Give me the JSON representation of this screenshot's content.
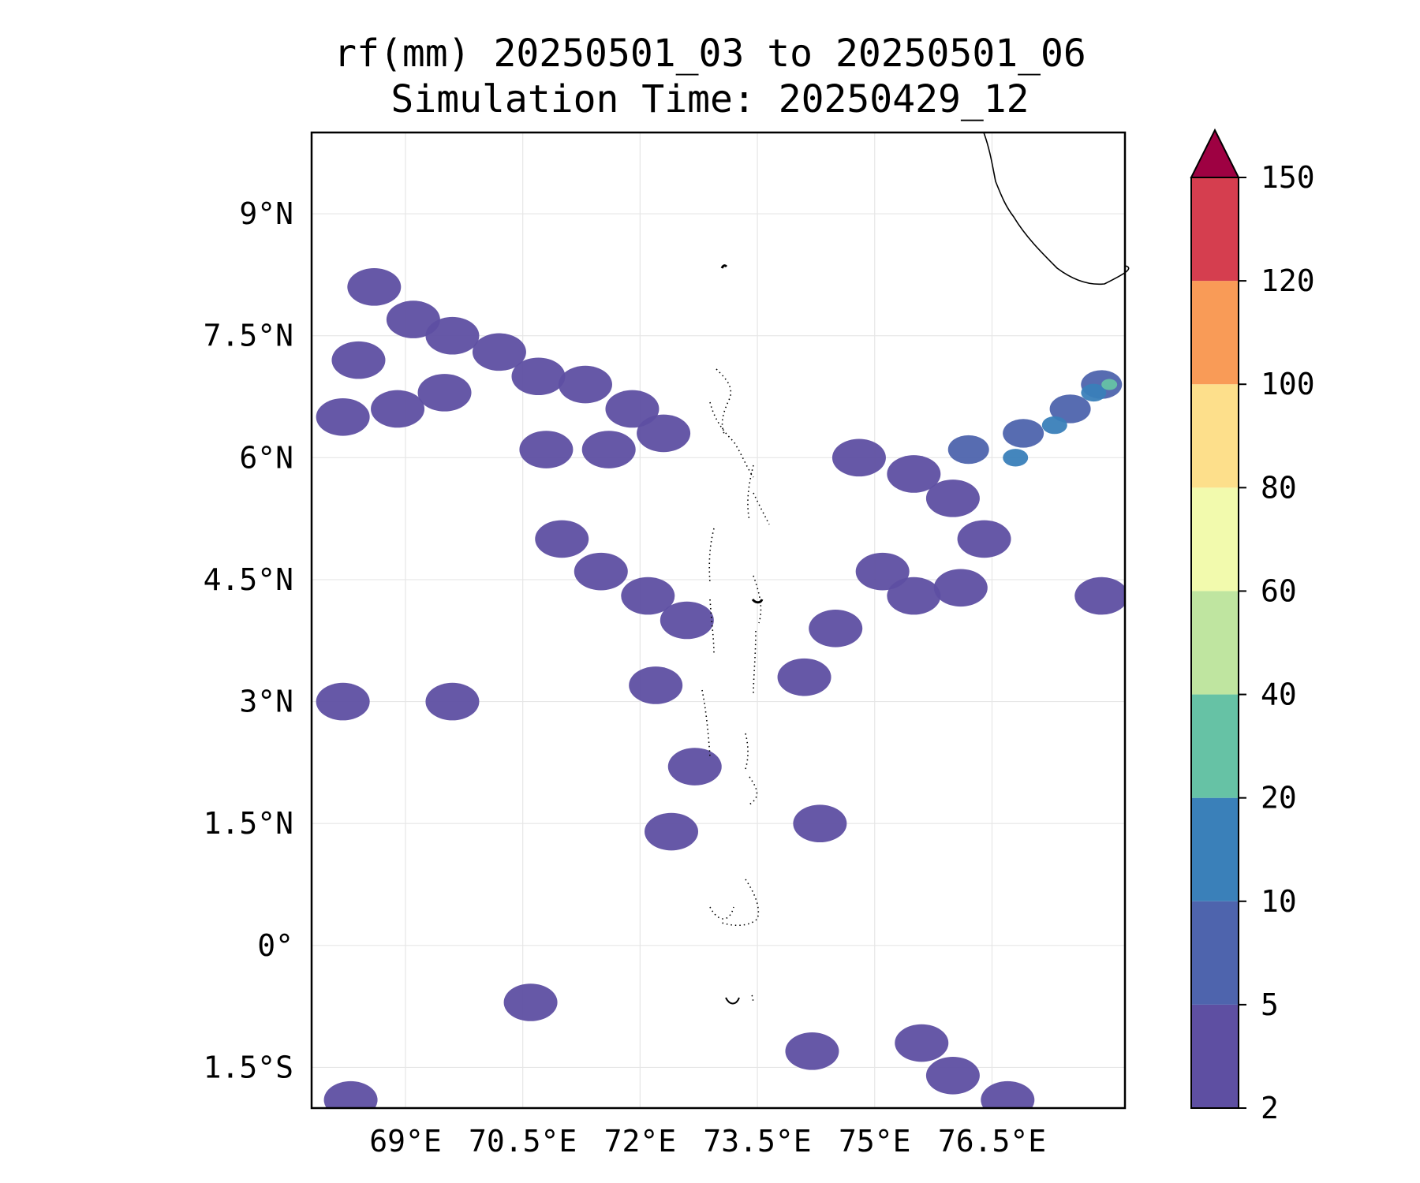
{
  "title": {
    "line1": "rf(mm) 20250501_03 to 20250501_06",
    "line2": "Simulation Time: 20250429_12"
  },
  "map": {
    "lon_range": [
      67.8,
      78.2
    ],
    "lat_range": [
      -2.0,
      10.0
    ],
    "lon_ticks": [
      {
        "value": 69.0,
        "label": "69°E"
      },
      {
        "value": 70.5,
        "label": "70.5°E"
      },
      {
        "value": 72.0,
        "label": "72°E"
      },
      {
        "value": 73.5,
        "label": "73.5°E"
      },
      {
        "value": 75.0,
        "label": "75°E"
      },
      {
        "value": 76.5,
        "label": "76.5°E"
      }
    ],
    "lat_ticks": [
      {
        "value": 9.0,
        "label": "9°N"
      },
      {
        "value": 7.5,
        "label": "7.5°N"
      },
      {
        "value": 6.0,
        "label": "6°N"
      },
      {
        "value": 4.5,
        "label": "4.5°N"
      },
      {
        "value": 3.0,
        "label": "3°N"
      },
      {
        "value": 1.5,
        "label": "1.5°N"
      },
      {
        "value": 0.0,
        "label": "0°"
      },
      {
        "value": -1.5,
        "label": "1.5°S"
      }
    ],
    "gridlines": true,
    "rain_cells": [
      {
        "lon": 68.6,
        "lat": 8.1,
        "value": 4
      },
      {
        "lon": 69.1,
        "lat": 7.7,
        "value": 4
      },
      {
        "lon": 69.6,
        "lat": 7.5,
        "value": 4
      },
      {
        "lon": 70.2,
        "lat": 7.3,
        "value": 4
      },
      {
        "lon": 70.7,
        "lat": 7.0,
        "value": 4
      },
      {
        "lon": 71.3,
        "lat": 6.9,
        "value": 4
      },
      {
        "lon": 71.9,
        "lat": 6.6,
        "value": 4
      },
      {
        "lon": 72.3,
        "lat": 6.3,
        "value": 4
      },
      {
        "lon": 68.4,
        "lat": 7.2,
        "value": 4
      },
      {
        "lon": 68.9,
        "lat": 6.6,
        "value": 4
      },
      {
        "lon": 69.5,
        "lat": 6.8,
        "value": 4
      },
      {
        "lon": 70.8,
        "lat": 6.1,
        "value": 4
      },
      {
        "lon": 71.6,
        "lat": 6.1,
        "value": 4
      },
      {
        "lon": 68.2,
        "lat": 6.5,
        "value": 4
      },
      {
        "lon": 71.0,
        "lat": 5.0,
        "value": 4
      },
      {
        "lon": 71.5,
        "lat": 4.6,
        "value": 4
      },
      {
        "lon": 72.1,
        "lat": 4.3,
        "value": 4
      },
      {
        "lon": 72.6,
        "lat": 4.0,
        "value": 4
      },
      {
        "lon": 72.2,
        "lat": 3.2,
        "value": 4
      },
      {
        "lon": 72.7,
        "lat": 2.2,
        "value": 4
      },
      {
        "lon": 72.4,
        "lat": 1.4,
        "value": 4
      },
      {
        "lon": 69.6,
        "lat": 3.0,
        "value": 4
      },
      {
        "lon": 68.2,
        "lat": 3.0,
        "value": 4
      },
      {
        "lon": 70.6,
        "lat": -0.7,
        "value": 4
      },
      {
        "lon": 74.8,
        "lat": 6.0,
        "value": 4
      },
      {
        "lon": 75.5,
        "lat": 5.8,
        "value": 4
      },
      {
        "lon": 76.0,
        "lat": 5.5,
        "value": 4
      },
      {
        "lon": 76.4,
        "lat": 5.0,
        "value": 4
      },
      {
        "lon": 75.1,
        "lat": 4.6,
        "value": 4
      },
      {
        "lon": 75.5,
        "lat": 4.3,
        "value": 4
      },
      {
        "lon": 74.5,
        "lat": 3.9,
        "value": 4
      },
      {
        "lon": 74.1,
        "lat": 3.3,
        "value": 4
      },
      {
        "lon": 76.1,
        "lat": 4.4,
        "value": 4
      },
      {
        "lon": 77.9,
        "lat": 4.3,
        "value": 4
      },
      {
        "lon": 74.3,
        "lat": 1.5,
        "value": 4
      },
      {
        "lon": 75.6,
        "lat": -1.2,
        "value": 4
      },
      {
        "lon": 76.0,
        "lat": -1.6,
        "value": 4
      },
      {
        "lon": 76.7,
        "lat": -1.9,
        "value": 4
      },
      {
        "lon": 74.2,
        "lat": -1.3,
        "value": 4
      },
      {
        "lon": 68.3,
        "lat": -1.9,
        "value": 4
      },
      {
        "lon": 76.2,
        "lat": 6.1,
        "value": 7
      },
      {
        "lon": 76.9,
        "lat": 6.3,
        "value": 7
      },
      {
        "lon": 77.5,
        "lat": 6.6,
        "value": 7
      },
      {
        "lon": 77.9,
        "lat": 6.9,
        "value": 7
      },
      {
        "lon": 76.8,
        "lat": 6.0,
        "value": 15
      },
      {
        "lon": 77.3,
        "lat": 6.4,
        "value": 15
      },
      {
        "lon": 77.8,
        "lat": 6.8,
        "value": 15
      },
      {
        "lon": 78.0,
        "lat": 6.9,
        "value": 25
      }
    ],
    "coastline": "Sri Lanka (west coast, top-right)",
    "islands": "Maldives atolls (dotted outlines)"
  },
  "colorbar": {
    "labels": [
      "2",
      "5",
      "10",
      "20",
      "40",
      "60",
      "80",
      "100",
      "120",
      "150"
    ],
    "colors": [
      "#5e4fa2",
      "#4e64ad",
      "#3a80b9",
      "#66c2a5",
      "#bfe5a0",
      "#f2faad",
      "#fddf8b",
      "#f99b57",
      "#d53e4f"
    ],
    "extend_color": "#9e0142",
    "extend": "max"
  }
}
